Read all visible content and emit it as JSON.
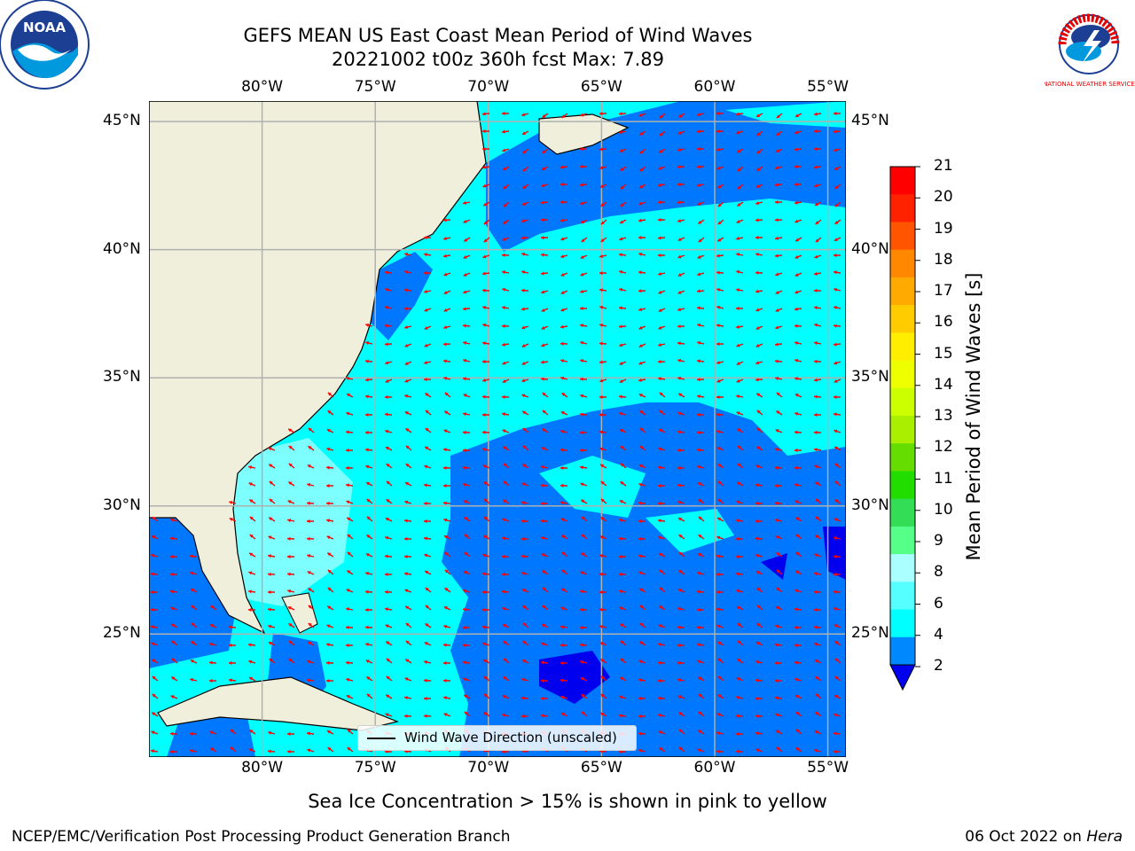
{
  "title": {
    "line1": "GEFS MEAN US East Coast Mean Period of Wind Waves",
    "line2": "20221002 t00z 360h fcst   Max: 7.89"
  },
  "logos": {
    "left": "noaa-logo",
    "left_text": "NOAA",
    "right": "nws-logo",
    "right_text": "NATIONAL WEATHER SERVICE"
  },
  "axes": {
    "lon_labels": [
      "80°W",
      "75°W",
      "70°W",
      "65°W",
      "60°W",
      "55°W"
    ],
    "lon_values": [
      -80,
      -75,
      -70,
      -65,
      -60,
      -55
    ],
    "lat_labels": [
      "45°N",
      "40°N",
      "35°N",
      "30°N",
      "25°N"
    ],
    "lat_values": [
      45,
      40,
      35,
      30,
      25
    ],
    "extent": {
      "lon_min": -85,
      "lon_max": -54.2,
      "lat_min": 20.2,
      "lat_max": 45.8
    }
  },
  "colorbar": {
    "label": "Mean Period of Wind Waves [s]",
    "ticks": [
      "21",
      "20",
      "19",
      "18",
      "17",
      "16",
      "15",
      "14",
      "13",
      "12",
      "11",
      "10",
      "9",
      "8",
      "6",
      "4",
      "2"
    ],
    "colors": [
      "#ff0000",
      "#ff2200",
      "#ff5500",
      "#ff8800",
      "#ffaa00",
      "#ffcc00",
      "#ffee00",
      "#eeff00",
      "#ccff00",
      "#aaee00",
      "#66dd00",
      "#22dd00",
      "#33dd55",
      "#55ff88",
      "#aaffff",
      "#55ffff",
      "#00ffff",
      "#0088ff",
      "#0000ee"
    ],
    "extend_min_color": "#0000ee"
  },
  "legend": {
    "label": "Wind Wave Direction (unscaled)"
  },
  "colors": {
    "land": "#efefdc",
    "ocean_low": "#0077ff",
    "ocean_mid": "#00ffff",
    "ocean_high": "#7dffff",
    "arrows": "#ff0000",
    "grid": "#b0b0b0"
  },
  "subcaption": "Sea Ice Concentration > 15% is shown in pink to yellow",
  "footer": {
    "left": "NCEP/EMC/Verification Post Processing Product Generation Branch",
    "right_date": "06 Oct 2022 on",
    "right_host": "Hera"
  }
}
